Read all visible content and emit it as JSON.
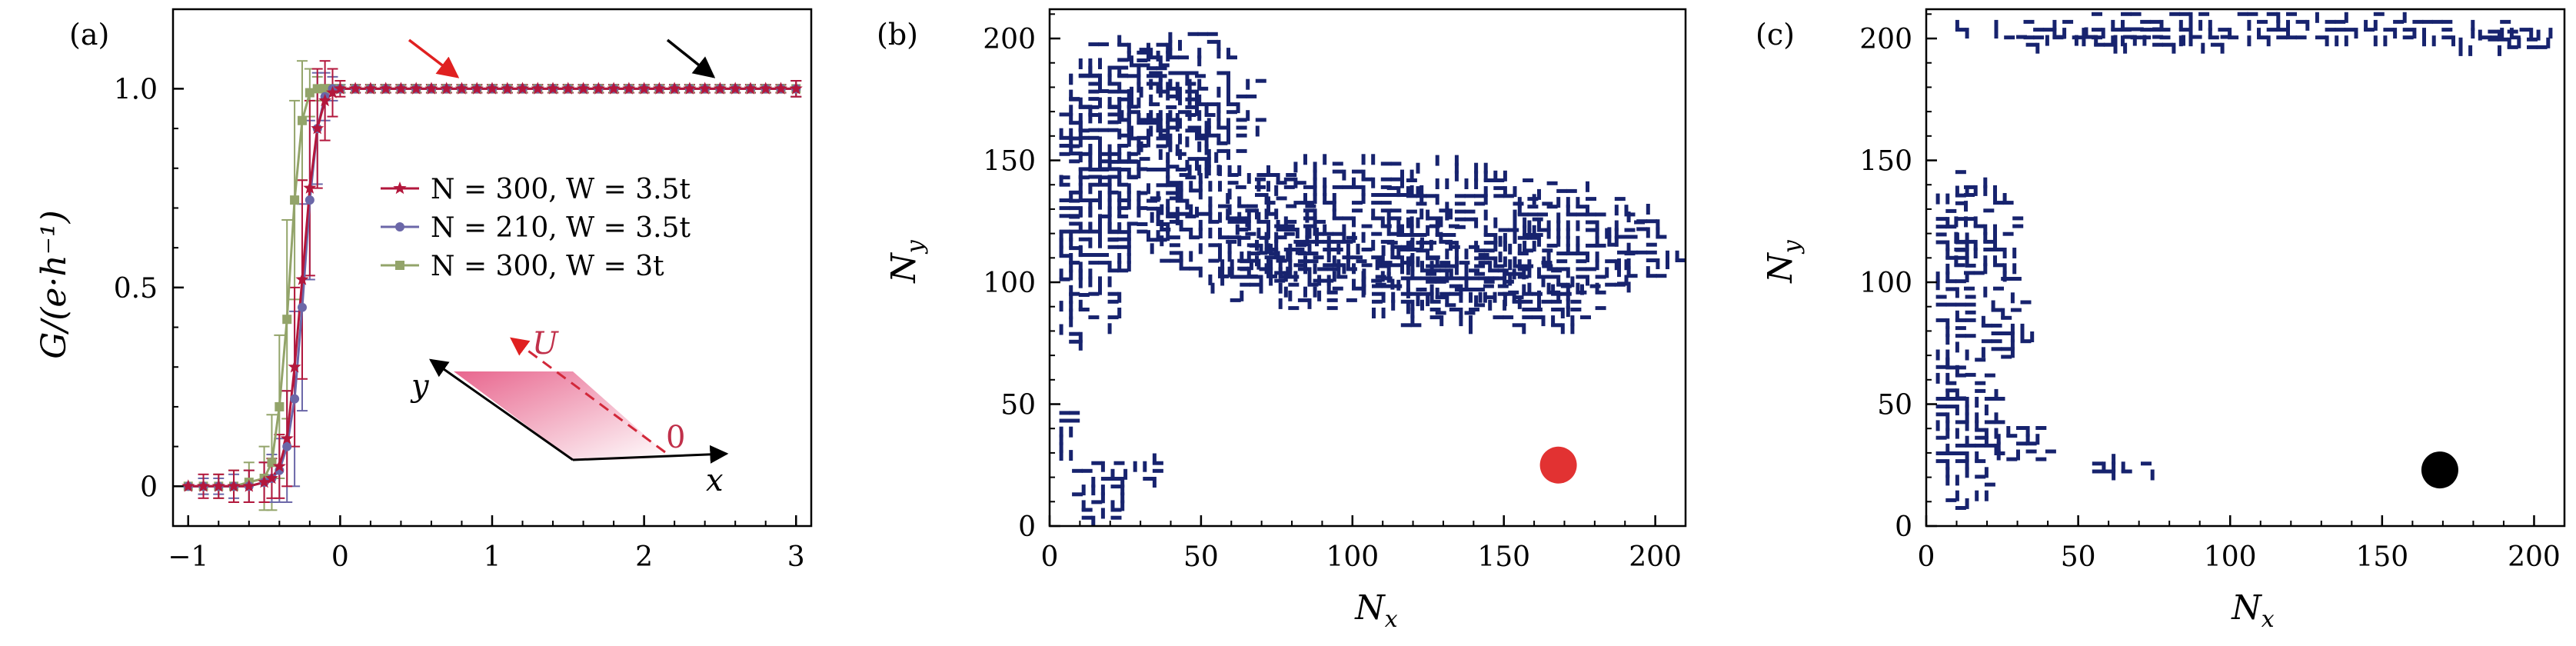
{
  "panels": {
    "a": {
      "label": "(a)"
    },
    "b": {
      "label": "(b)"
    },
    "c": {
      "label": "(c)"
    }
  },
  "colors": {
    "series1": "#b3173c",
    "series2": "#6b67a8",
    "series3": "#93a46a",
    "cluster": "#17236e",
    "red_marker": "#e23232",
    "black_marker": "#000000",
    "red_arrow": "#e02020",
    "black_arrow": "#000000"
  },
  "inset": {
    "y_label": "y",
    "x_label": "x",
    "u_label": "U",
    "zero_label": "0"
  },
  "chart_data": [
    {
      "id": "a",
      "type": "line",
      "xlabel": "",
      "ylabel": "G/(e·h⁻¹)",
      "xlim": [
        -1.1,
        3.1
      ],
      "ylim": [
        -0.1,
        1.2
      ],
      "xticks": [
        -1,
        0,
        1,
        2,
        3
      ],
      "yticks": [
        0,
        0.5,
        1.0
      ],
      "ytick_labels": [
        "0",
        "0.5",
        "1.0"
      ],
      "legend_position": "center-right",
      "x": [
        -1.0,
        -0.9,
        -0.8,
        -0.7,
        -0.6,
        -0.5,
        -0.45,
        -0.4,
        -0.35,
        -0.3,
        -0.25,
        -0.2,
        -0.15,
        -0.1,
        -0.05,
        0.0,
        0.1,
        0.2,
        0.3,
        0.4,
        0.5,
        0.6,
        0.7,
        0.8,
        0.9,
        1.0,
        1.1,
        1.2,
        1.3,
        1.4,
        1.5,
        1.6,
        1.7,
        1.8,
        1.9,
        2.0,
        2.1,
        2.2,
        2.3,
        2.4,
        2.5,
        2.6,
        2.7,
        2.8,
        2.9,
        3.0
      ],
      "series": [
        {
          "name": "N = 300,  W = 3.5t",
          "marker": "star",
          "values": [
            0,
            0,
            0,
            0,
            0,
            0.01,
            0.02,
            0.05,
            0.12,
            0.3,
            0.52,
            0.75,
            0.9,
            0.97,
            0.99,
            1,
            1,
            1,
            1,
            1,
            1,
            1,
            1,
            1,
            1,
            1,
            1,
            1,
            1,
            1,
            1,
            1,
            1,
            1,
            1,
            1,
            1,
            1,
            1,
            1,
            1,
            1,
            1,
            1,
            1,
            1
          ],
          "err": [
            0,
            0.03,
            0.03,
            0.04,
            0.04,
            0.05,
            0.05,
            0.08,
            0.12,
            0.2,
            0.25,
            0.22,
            0.15,
            0.1,
            0.06,
            0.02,
            0.01,
            0.01,
            0.01,
            0.01,
            0.01,
            0.01,
            0.01,
            0.01,
            0.01,
            0.01,
            0.01,
            0.01,
            0.01,
            0.01,
            0.01,
            0.01,
            0.01,
            0.01,
            0.01,
            0.01,
            0.01,
            0.01,
            0.01,
            0.01,
            0.01,
            0.01,
            0.01,
            0.01,
            0.01,
            0.02
          ]
        },
        {
          "name": "N = 210,  W = 3.5t",
          "marker": "circle",
          "values": [
            0,
            0,
            0,
            0,
            0,
            0.01,
            0.02,
            0.04,
            0.1,
            0.22,
            0.45,
            0.72,
            0.9,
            0.98,
            1,
            1,
            1,
            1,
            1,
            1,
            1,
            1,
            1,
            1,
            1,
            1,
            1,
            1,
            1,
            1,
            1,
            1,
            1,
            1,
            1,
            1,
            1,
            1,
            1,
            1,
            1,
            1,
            1,
            1,
            1,
            1
          ],
          "err": [
            0,
            0.02,
            0.02,
            0.03,
            0.04,
            0.05,
            0.06,
            0.08,
            0.14,
            0.22,
            0.26,
            0.2,
            0.14,
            0.06,
            0.03,
            0.01,
            0.01,
            0.01,
            0.01,
            0.01,
            0.01,
            0.01,
            0.01,
            0.01,
            0.01,
            0.01,
            0.01,
            0.01,
            0.01,
            0.01,
            0.01,
            0.01,
            0.01,
            0.01,
            0.01,
            0.01,
            0.01,
            0.01,
            0.01,
            0.01,
            0.01,
            0.01,
            0.01,
            0.01,
            0.01,
            0.02
          ]
        },
        {
          "name": "N = 300,  W = 3t",
          "marker": "square",
          "values": [
            0,
            0,
            0,
            0,
            0.01,
            0.02,
            0.06,
            0.2,
            0.42,
            0.72,
            0.92,
            0.99,
            1,
            1,
            1,
            1,
            1,
            1,
            1,
            1,
            1,
            1,
            1,
            1,
            1,
            1,
            1,
            1,
            1,
            1,
            1,
            1,
            1,
            1,
            1,
            1,
            1,
            1,
            1,
            1,
            1,
            1,
            1,
            1,
            1,
            1
          ],
          "err": [
            0,
            0.02,
            0.03,
            0.04,
            0.05,
            0.08,
            0.12,
            0.18,
            0.25,
            0.25,
            0.15,
            0.06,
            0.03,
            0.01,
            0.01,
            0.01,
            0.01,
            0.01,
            0.01,
            0.01,
            0.01,
            0.01,
            0.01,
            0.01,
            0.01,
            0.01,
            0.01,
            0.01,
            0.01,
            0.01,
            0.01,
            0.01,
            0.01,
            0.01,
            0.01,
            0.01,
            0.01,
            0.01,
            0.01,
            0.01,
            0.01,
            0.01,
            0.01,
            0.01,
            0.01,
            0.02
          ]
        }
      ],
      "annotations": [
        {
          "type": "arrow",
          "color": "red",
          "points_to": [
            0.8,
            1.02
          ]
        },
        {
          "type": "arrow",
          "color": "black",
          "points_to": [
            2.45,
            1.02
          ]
        }
      ]
    },
    {
      "id": "b",
      "type": "scatter",
      "xlabel": "N_x",
      "ylabel": "N_y",
      "xlim": [
        0,
        210
      ],
      "ylim": [
        0,
        212
      ],
      "xticks": [
        0,
        50,
        100,
        150,
        200
      ],
      "yticks": [
        0,
        50,
        100,
        150,
        200
      ],
      "description_of_fill": "percolating cluster spanning left side",
      "cluster_blobs": [
        {
          "cx": 28,
          "cy": 160,
          "rx": 28,
          "ry": 45
        },
        {
          "cx": 45,
          "cy": 175,
          "rx": 25,
          "ry": 30
        },
        {
          "cx": 15,
          "cy": 140,
          "rx": 15,
          "ry": 60
        },
        {
          "cx": 60,
          "cy": 125,
          "rx": 30,
          "ry": 25
        },
        {
          "cx": 95,
          "cy": 125,
          "rx": 40,
          "ry": 30
        },
        {
          "cx": 135,
          "cy": 120,
          "rx": 30,
          "ry": 35
        },
        {
          "cx": 170,
          "cy": 115,
          "rx": 25,
          "ry": 28
        },
        {
          "cx": 195,
          "cy": 115,
          "rx": 14,
          "ry": 18
        },
        {
          "cx": 80,
          "cy": 105,
          "rx": 30,
          "ry": 18
        },
        {
          "cx": 125,
          "cy": 100,
          "rx": 25,
          "ry": 20
        },
        {
          "cx": 160,
          "cy": 95,
          "rx": 20,
          "ry": 15
        },
        {
          "cx": 6,
          "cy": 100,
          "rx": 6,
          "ry": 30
        },
        {
          "cx": 4,
          "cy": 40,
          "rx": 4,
          "ry": 12
        },
        {
          "cx": 15,
          "cy": 15,
          "rx": 14,
          "ry": 14
        },
        {
          "cx": 28,
          "cy": 25,
          "rx": 10,
          "ry": 8
        }
      ],
      "marker": {
        "x": 168,
        "y": 25,
        "color": "red"
      }
    },
    {
      "id": "c",
      "type": "scatter",
      "xlabel": "N_x",
      "ylabel": "N_y",
      "xlim": [
        0,
        210
      ],
      "ylim": [
        0,
        212
      ],
      "xticks": [
        0,
        50,
        100,
        150,
        200
      ],
      "yticks": [
        0,
        50,
        100,
        150,
        200
      ],
      "cluster_blobs": [
        {
          "cx": 105,
          "cy": 205,
          "rx": 105,
          "ry": 7
        },
        {
          "cx": 60,
          "cy": 200,
          "rx": 40,
          "ry": 5
        },
        {
          "cx": 190,
          "cy": 200,
          "rx": 18,
          "ry": 6
        },
        {
          "cx": 8,
          "cy": 100,
          "rx": 8,
          "ry": 50
        },
        {
          "cx": 18,
          "cy": 120,
          "rx": 12,
          "ry": 25
        },
        {
          "cx": 25,
          "cy": 85,
          "rx": 10,
          "ry": 18
        },
        {
          "cx": 12,
          "cy": 40,
          "rx": 12,
          "ry": 35
        },
        {
          "cx": 30,
          "cy": 35,
          "rx": 10,
          "ry": 10
        },
        {
          "cx": 60,
          "cy": 25,
          "rx": 15,
          "ry": 5
        }
      ],
      "marker": {
        "x": 169,
        "y": 23,
        "color": "black"
      }
    }
  ]
}
